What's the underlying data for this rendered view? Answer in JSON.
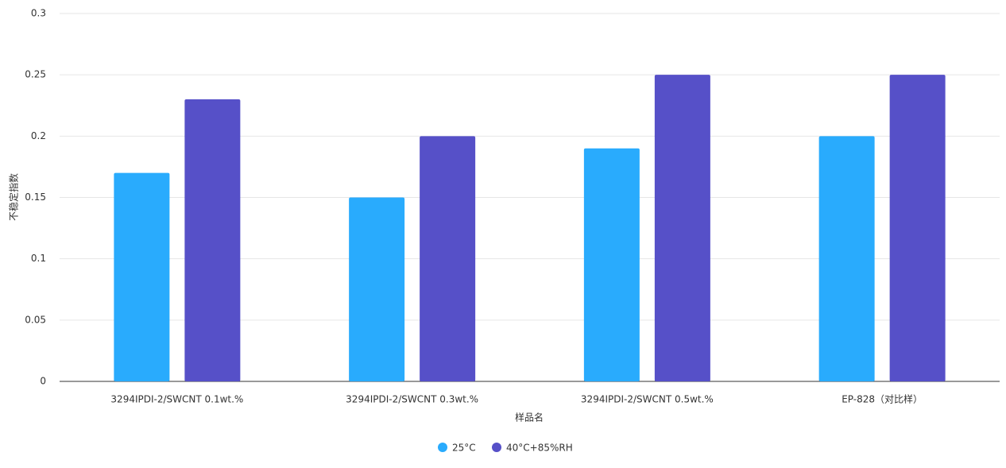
{
  "chart_data": {
    "type": "bar",
    "y_label": "不稳定指数",
    "x_label": "样品名",
    "categories": [
      "3294IPDI-2/SWCNT 0.1wt.%",
      "3294IPDI-2/SWCNT 0.3wt.%",
      "3294IPDI-2/SWCNT 0.5wt.%",
      "EP-828（对比样）"
    ],
    "series": [
      {
        "name": "25°C",
        "color": "#29abfd",
        "values": [
          0.17,
          0.15,
          0.19,
          0.2
        ]
      },
      {
        "name": "40°C+85%RH",
        "color": "#5650c8",
        "values": [
          0.23,
          0.2,
          0.25,
          0.25
        ]
      }
    ],
    "ylim": [
      0,
      0.3
    ],
    "yticks": [
      0,
      0.05,
      0.1,
      0.15,
      0.2,
      0.25,
      0.3
    ],
    "grid": true
  }
}
